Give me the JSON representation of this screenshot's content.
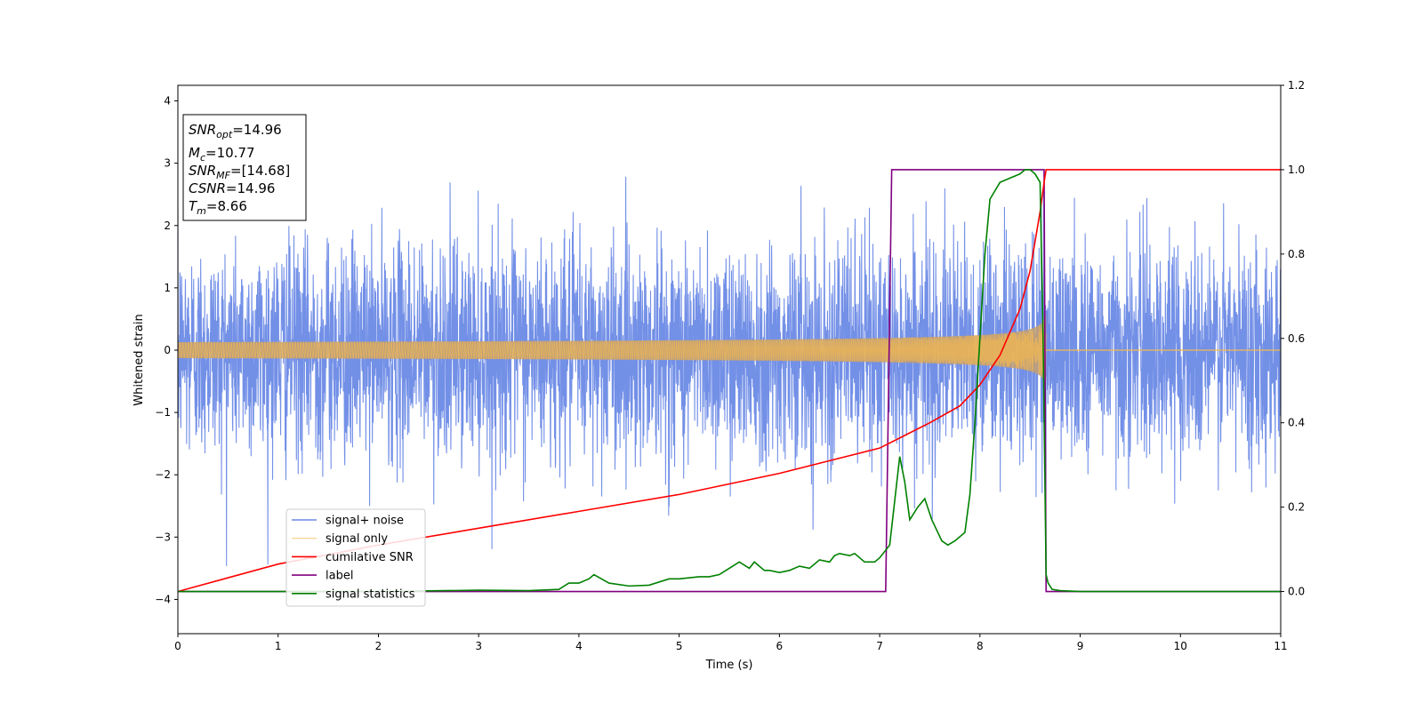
{
  "chart_data": {
    "type": "line",
    "xlabel": "Time (s)",
    "ylabel": "Whitened strain",
    "xlim": [
      0,
      11
    ],
    "ylim_left": [
      -4.55,
      4.25
    ],
    "ylim_right": [
      -0.1,
      1.2
    ],
    "x_ticks": [
      0,
      1,
      2,
      3,
      4,
      5,
      6,
      7,
      8,
      9,
      10,
      11
    ],
    "x_tick_labels": [
      "0",
      "1",
      "2",
      "3",
      "4",
      "5",
      "6",
      "7",
      "8",
      "9",
      "10",
      "11"
    ],
    "y_left_ticks": [
      -4,
      -3,
      -2,
      -1,
      0,
      1,
      2,
      3,
      4
    ],
    "y_left_tick_labels": [
      "−4",
      "−3",
      "−2",
      "−1",
      "0",
      "1",
      "2",
      "3",
      "4"
    ],
    "y_right_ticks": [
      0.0,
      0.2,
      0.4,
      0.6,
      0.8,
      1.0,
      1.2
    ],
    "y_right_tick_labels": [
      "0.0",
      "0.2",
      "0.4",
      "0.6",
      "0.8",
      "1.0",
      "1.2"
    ],
    "legend_placement": "lower-left",
    "info_box": {
      "lines": [
        {
          "main": "SNR",
          "sub": "opt",
          "value": "=14.96"
        },
        {
          "main": "M",
          "sub": "c",
          "value": "=10.77"
        },
        {
          "main": "SNR",
          "sub": "MF",
          "value": "=[14.68]"
        },
        {
          "main": "CSNR",
          "sub": "",
          "value": "=14.96"
        },
        {
          "main": "T",
          "sub": "m",
          "value": "=8.66"
        }
      ]
    },
    "series": [
      {
        "name": "signal+ noise",
        "color": "#6b8ae6",
        "axis": "left",
        "kind": "noise",
        "std": 0.85,
        "t_end": 11,
        "merger_time": 8.66
      },
      {
        "name": "signal only",
        "color": "#f5b94d",
        "axis": "left",
        "kind": "chirp",
        "t_merger": 8.66,
        "amplitude_start": 0.05,
        "amplitude_at_8": 0.55,
        "amplitude_peak": 1.0
      },
      {
        "name": "cumilative SNR",
        "color": "#ff0000",
        "axis": "right",
        "x": [
          0,
          1,
          2,
          3,
          4,
          5,
          6,
          6.5,
          7,
          7.5,
          7.8,
          8.0,
          8.2,
          8.4,
          8.5,
          8.6,
          8.64,
          8.66,
          9,
          10,
          11
        ],
        "y": [
          0.0,
          0.065,
          0.11,
          0.15,
          0.19,
          0.23,
          0.28,
          0.31,
          0.34,
          0.4,
          0.44,
          0.49,
          0.56,
          0.67,
          0.76,
          0.9,
          0.97,
          1.0,
          1.0,
          1.0,
          1.0
        ]
      },
      {
        "name": "label",
        "color": "#800080",
        "axis": "right",
        "x": [
          0,
          7.06,
          7.12,
          8.64,
          8.66,
          11
        ],
        "y": [
          0,
          0,
          1,
          1,
          0,
          0
        ]
      },
      {
        "name": "signal statistics",
        "color": "#008000",
        "axis": "right",
        "x": [
          0,
          1,
          2,
          3,
          3.5,
          3.8,
          3.9,
          4.0,
          4.1,
          4.15,
          4.3,
          4.5,
          4.7,
          4.9,
          5.0,
          5.2,
          5.3,
          5.4,
          5.5,
          5.6,
          5.7,
          5.75,
          5.85,
          5.9,
          6.0,
          6.1,
          6.2,
          6.3,
          6.4,
          6.5,
          6.55,
          6.6,
          6.7,
          6.75,
          6.85,
          6.95,
          7.0,
          7.1,
          7.2,
          7.25,
          7.3,
          7.38,
          7.45,
          7.52,
          7.58,
          7.62,
          7.68,
          7.75,
          7.85,
          7.9,
          7.95,
          8.0,
          8.05,
          8.1,
          8.15,
          8.2,
          8.3,
          8.4,
          8.45,
          8.5,
          8.55,
          8.6,
          8.63,
          8.66,
          8.68,
          8.72,
          8.8,
          9,
          10,
          11
        ],
        "y": [
          0,
          0.0,
          0.0,
          0.003,
          0.002,
          0.005,
          0.02,
          0.02,
          0.03,
          0.04,
          0.02,
          0.013,
          0.015,
          0.03,
          0.03,
          0.035,
          0.035,
          0.04,
          0.055,
          0.07,
          0.055,
          0.07,
          0.05,
          0.05,
          0.045,
          0.05,
          0.06,
          0.055,
          0.075,
          0.07,
          0.085,
          0.09,
          0.085,
          0.09,
          0.07,
          0.07,
          0.08,
          0.11,
          0.32,
          0.26,
          0.17,
          0.2,
          0.22,
          0.17,
          0.14,
          0.12,
          0.11,
          0.12,
          0.14,
          0.23,
          0.4,
          0.6,
          0.8,
          0.93,
          0.95,
          0.97,
          0.98,
          0.99,
          1.0,
          1.0,
          0.99,
          0.97,
          0.6,
          0.04,
          0.02,
          0.005,
          0.002,
          0.0,
          0.0,
          0.0
        ]
      }
    ]
  }
}
